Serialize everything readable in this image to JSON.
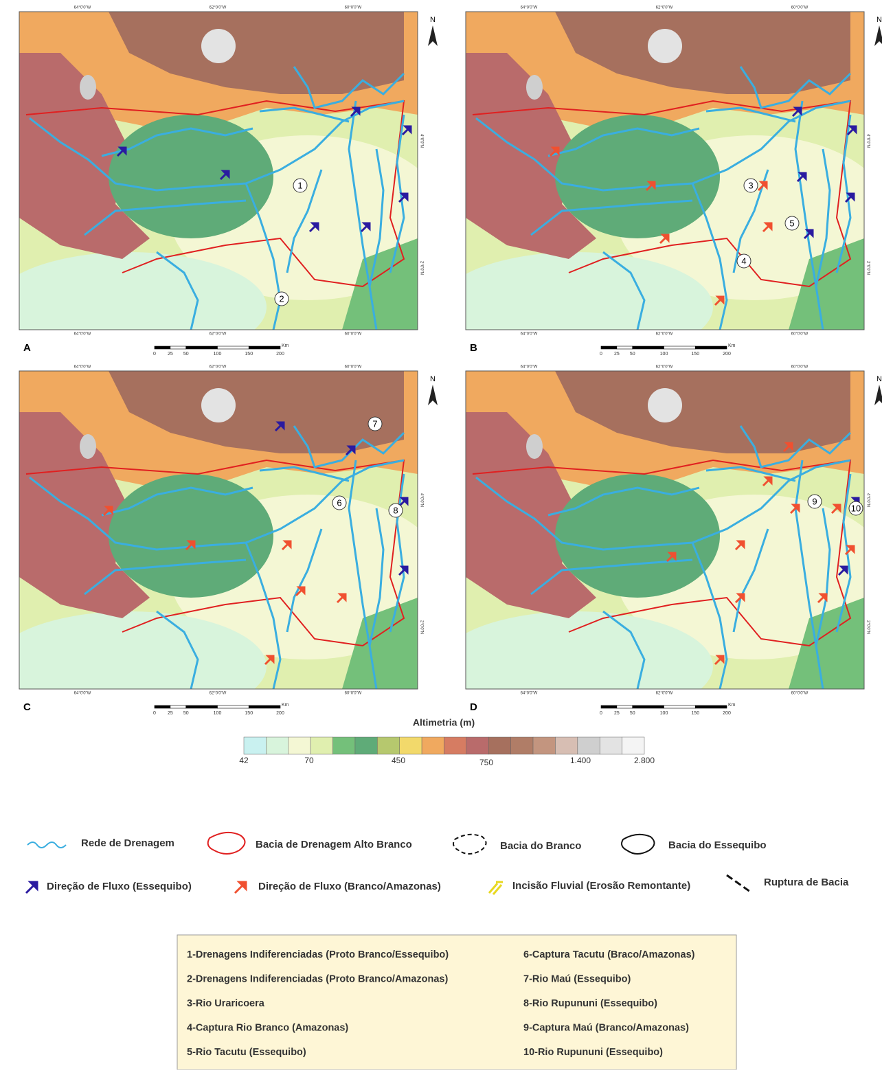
{
  "panels": [
    {
      "label": "A",
      "markers": [
        "1",
        "2"
      ]
    },
    {
      "label": "B",
      "markers": [
        "3",
        "4",
        "5"
      ]
    },
    {
      "label": "C",
      "markers": [
        "6",
        "7",
        "8"
      ]
    },
    {
      "label": "D",
      "markers": [
        "9",
        "10"
      ]
    }
  ],
  "north": "N",
  "coordinates": {
    "longitudes": [
      "64°0'0\"W",
      "62°0'0\"W",
      "60°0'0\"W"
    ],
    "latitudes": [
      "4°0'0\"N",
      "2°0'0\"N"
    ]
  },
  "scale_bar": {
    "ticks": [
      "0",
      "25",
      "50",
      "100",
      "150",
      "200"
    ],
    "unit": "Km"
  },
  "altimetry_legend": {
    "title": "Altimetria (m)",
    "labels": [
      "42",
      "70",
      "450",
      "750",
      "1.400",
      "2.800"
    ],
    "colors": [
      "#c9f1f0",
      "#d8f4dc",
      "#f4f7d4",
      "#e0efaf",
      "#74c07a",
      "#5fab78",
      "#b6c86e",
      "#f2d96b",
      "#f0a95f",
      "#d67c62",
      "#b96b6b",
      "#a6705e",
      "#b07d67",
      "#c3957f",
      "#d7beb3",
      "#cfcfcf",
      "#e3e3e3",
      "#f4f4f4"
    ]
  },
  "legend": [
    "Rede de Drenagem",
    "Bacia de Drenagem Alto Branco",
    "Bacia do Branco",
    "Bacia do Essequibo",
    "Direção de Fluxo (Essequibo)",
    "Direção de Fluxo (Branco/Amazonas)",
    "Incisão Fluvial (Erosão Remontante)",
    "Ruptura de Bacia"
  ],
  "key": [
    "1-Drenagens Indiferenciadas (Proto Branco/Essequibo)",
    "2-Drenagens Indiferenciadas (Proto Branco/Amazonas)",
    "3-Rio Uraricoera",
    "4-Captura Rio Branco (Amazonas)",
    "5-Rio Tacutu (Essequibo)",
    "6-Captura Tacutu (Braco/Amazonas)",
    "7-Rio Maú (Essequibo)",
    "8-Rio Rupununi (Essequibo)",
    "9-Captura Maú (Branco/Amazonas)",
    "10-Rio Rupununi (Essequibo)"
  ]
}
